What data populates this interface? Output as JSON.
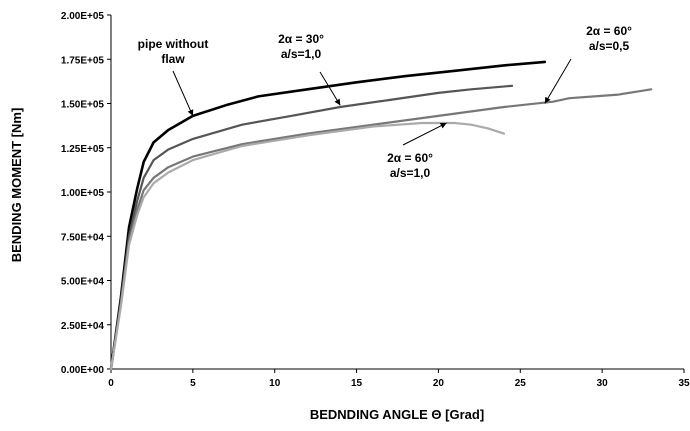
{
  "chart_data": {
    "type": "line",
    "xlabel": "BEDNDING ANGLE Θ  [Grad]",
    "ylabel": "BENDING MOMENT  [Nm]",
    "xlim": [
      0,
      35
    ],
    "ylim": [
      0,
      200000
    ],
    "x_ticks": [
      "0",
      "5",
      "10",
      "15",
      "20",
      "25",
      "30",
      "35"
    ],
    "y_ticks": [
      "0.00E+00",
      "2.50E+04",
      "5.00E+04",
      "7.50E+04",
      "1.00E+05",
      "1.25E+05",
      "1.50E+05",
      "1.75E+05",
      "2.00E+05"
    ],
    "grid": false,
    "legend": "none",
    "series": [
      {
        "color": "#000000",
        "points": [
          [
            0,
            0
          ],
          [
            0.6,
            40000
          ],
          [
            1.1,
            80000
          ],
          [
            1.6,
            102000
          ],
          [
            2.0,
            117000
          ],
          [
            2.6,
            128000
          ],
          [
            3.5,
            135000
          ],
          [
            5.0,
            143000
          ],
          [
            7.0,
            149000
          ],
          [
            9.0,
            154000
          ],
          [
            12,
            158000
          ],
          [
            15,
            162000
          ],
          [
            18,
            165500
          ],
          [
            21,
            168500
          ],
          [
            24,
            171500
          ],
          [
            26.5,
            173500
          ]
        ]
      },
      {
        "color": "#555555",
        "points": [
          [
            0,
            0
          ],
          [
            0.6,
            38000
          ],
          [
            1.1,
            75000
          ],
          [
            1.6,
            95000
          ],
          [
            2.0,
            108000
          ],
          [
            2.6,
            118000
          ],
          [
            3.5,
            124000
          ],
          [
            5.0,
            130000
          ],
          [
            8.0,
            138000
          ],
          [
            11,
            143000
          ],
          [
            14,
            148000
          ],
          [
            17,
            152000
          ],
          [
            20,
            156000
          ],
          [
            22,
            158000
          ],
          [
            24.5,
            160000
          ]
        ]
      },
      {
        "color": "#777777",
        "points": [
          [
            0,
            0
          ],
          [
            0.6,
            36000
          ],
          [
            1.1,
            72000
          ],
          [
            1.6,
            90000
          ],
          [
            2.0,
            101000
          ],
          [
            2.6,
            108000
          ],
          [
            3.5,
            114000
          ],
          [
            5.0,
            120000
          ],
          [
            8.0,
            127000
          ],
          [
            12,
            133000
          ],
          [
            16,
            138000
          ],
          [
            20,
            143000
          ],
          [
            24,
            148000
          ],
          [
            27,
            151000
          ],
          [
            28,
            153000
          ],
          [
            31,
            155000
          ],
          [
            33,
            158000
          ]
        ]
      },
      {
        "color": "#aaaaaa",
        "points": [
          [
            0,
            0
          ],
          [
            0.6,
            35000
          ],
          [
            1.1,
            70000
          ],
          [
            1.6,
            87000
          ],
          [
            2.0,
            97000
          ],
          [
            2.6,
            105000
          ],
          [
            3.5,
            111000
          ],
          [
            5.0,
            118000
          ],
          [
            8.0,
            126000
          ],
          [
            12,
            132000
          ],
          [
            16,
            137000
          ],
          [
            19,
            139000
          ],
          [
            21,
            139000
          ],
          [
            22,
            138000
          ],
          [
            23,
            136000
          ],
          [
            24,
            133000
          ]
        ]
      }
    ],
    "annotations": [
      {
        "lines": [
          "pipe without",
          "flaw"
        ],
        "points_to": [
          5,
          143000
        ]
      },
      {
        "lines": [
          "2α = 30°",
          "a/s=1,0"
        ],
        "points_to": [
          14,
          149000
        ]
      },
      {
        "lines": [
          "2α = 60°",
          "a/s=0,5"
        ],
        "points_to": [
          26.5,
          150000
        ]
      },
      {
        "lines": [
          "2α  = 60°",
          "a/s=1,0"
        ],
        "points_to": [
          20.5,
          139000
        ]
      }
    ]
  }
}
